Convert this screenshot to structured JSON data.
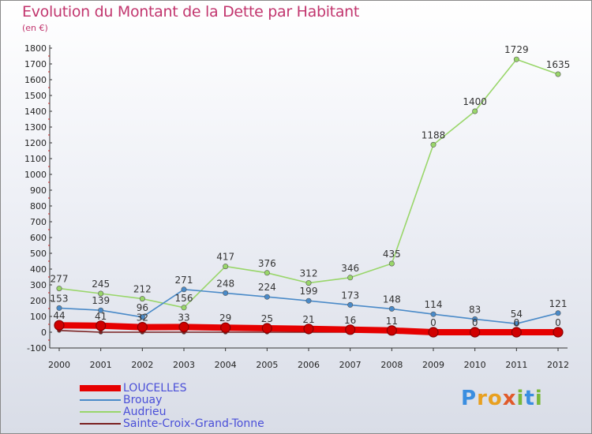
{
  "header": {
    "title": "Evolution du Montant de la Dette par Habitant",
    "subtitle": "(en €)"
  },
  "logo": {
    "text": "Proxiti",
    "colors": [
      "#3a8ee0",
      "#e8a020",
      "#7ab83a",
      "#e05a2a"
    ]
  },
  "chart_data": {
    "type": "line",
    "title": "Evolution du Montant de la Dette par Habitant",
    "subtitle": "(en €)",
    "xlabel": "",
    "ylabel": "",
    "x": [
      "2000",
      "2001",
      "2002",
      "2003",
      "2004",
      "2005",
      "2006",
      "2007",
      "2008",
      "2009",
      "2010",
      "2011",
      "2012"
    ],
    "ylim": [
      -100,
      1800
    ],
    "yticks": [
      "-100",
      "0",
      "100",
      "200",
      "300",
      "400",
      "500",
      "600",
      "700",
      "800",
      "900",
      "1000",
      "1100",
      "1200",
      "1300",
      "1400",
      "1500",
      "1600",
      "1700",
      "1800"
    ],
    "grid": false,
    "legend_position": "bottom-left",
    "series": [
      {
        "name": "LOUCELLES",
        "color": "#e60000",
        "values": [
          44,
          41,
          32,
          33,
          29,
          25,
          21,
          16,
          11,
          0,
          0,
          0,
          0
        ],
        "labels": [
          "44",
          "41",
          "32",
          "33",
          "29",
          "25",
          "21",
          "16",
          "11",
          "0",
          "0",
          "0",
          "0"
        ]
      },
      {
        "name": "Brouay",
        "color": "#4a8ac8",
        "values": [
          153,
          139,
          96,
          271,
          248,
          224,
          199,
          173,
          148,
          114,
          83,
          54,
          121
        ],
        "labels": [
          "153",
          "139",
          "96",
          "271",
          "248",
          "224",
          "199",
          "173",
          "148",
          "114",
          "83",
          "54",
          "121"
        ]
      },
      {
        "name": "Audrieu",
        "color": "#99d66a",
        "values": [
          277,
          245,
          212,
          156,
          417,
          376,
          312,
          346,
          435,
          1188,
          1400,
          1729,
          1635
        ],
        "labels": [
          "277",
          "245",
          "212",
          "156",
          "417",
          "376",
          "312",
          "346",
          "435",
          "1188",
          "1400",
          "1729",
          "1635"
        ]
      },
      {
        "name": "Sainte-Croix-Grand-Tonne",
        "color": "#7a2020",
        "values": [
          11,
          0,
          0,
          0,
          0,
          0,
          0,
          0,
          0,
          0,
          0,
          0,
          0
        ],
        "labels": []
      }
    ]
  }
}
